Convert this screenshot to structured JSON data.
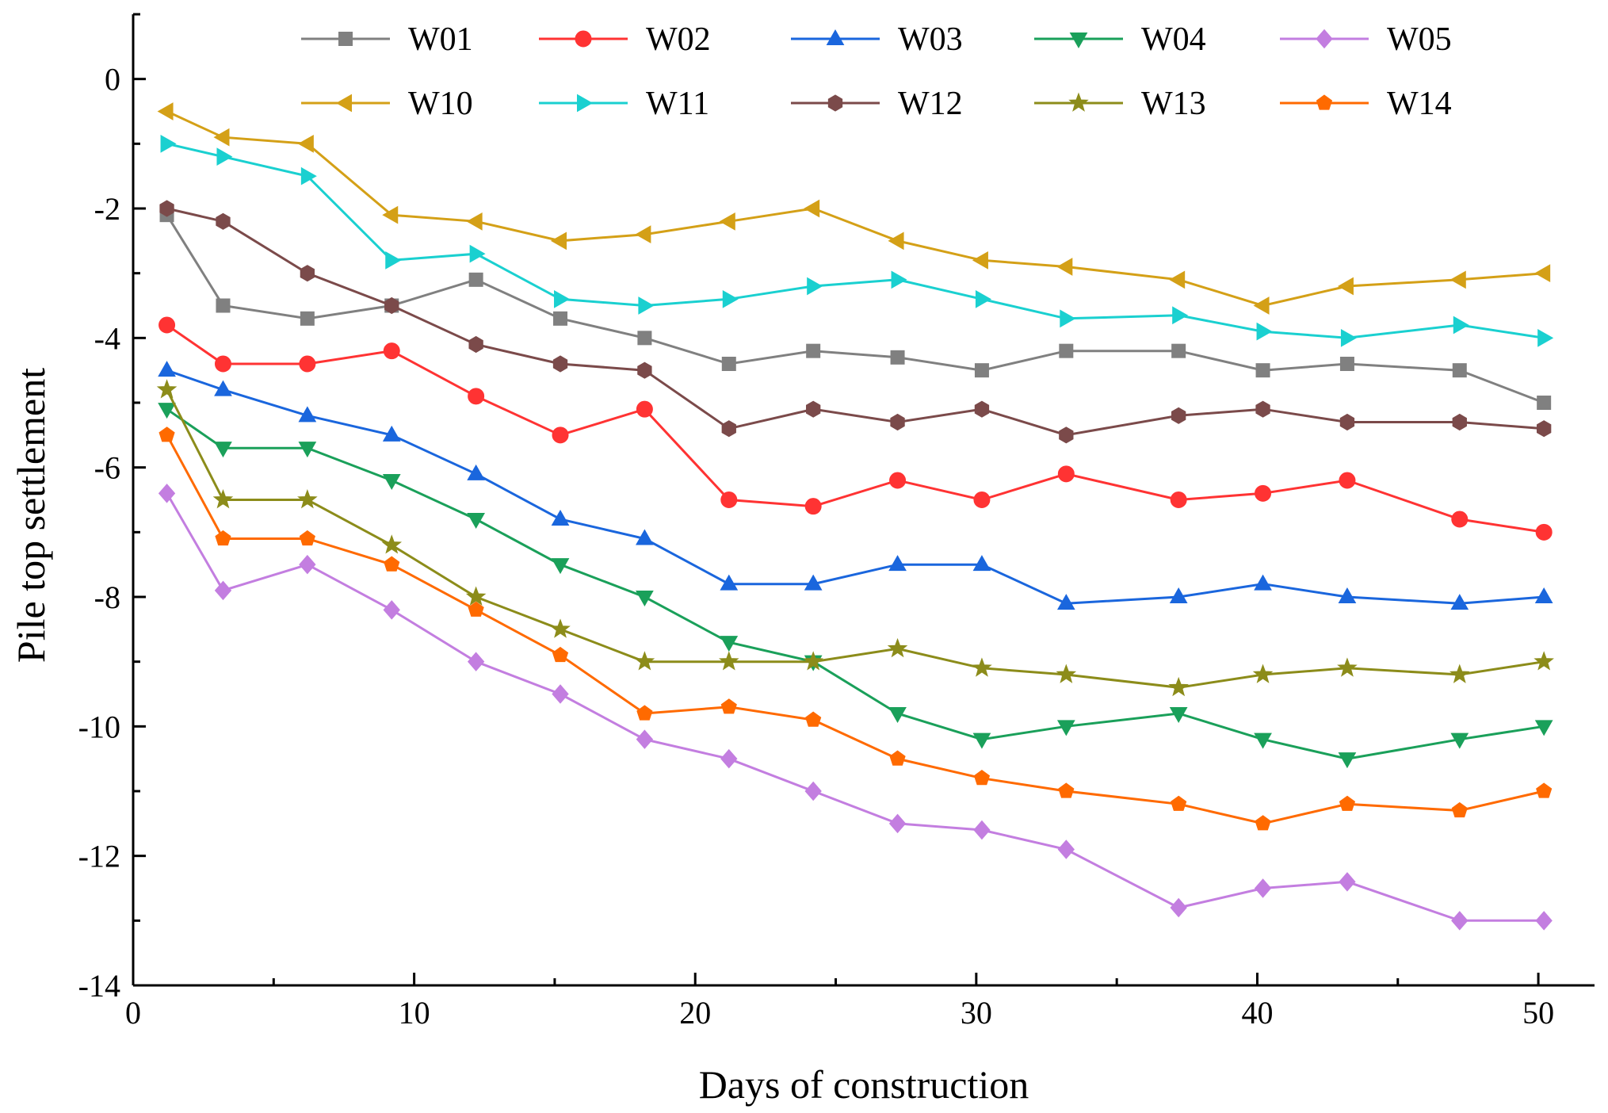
{
  "chart_data": {
    "type": "line",
    "title": "",
    "xlabel": "Days of construction",
    "ylabel": "Pile top settlement",
    "xlim": [
      0,
      52
    ],
    "ylim": [
      -14,
      1
    ],
    "xticks": [
      0,
      10,
      20,
      30,
      40,
      50
    ],
    "yticks": [
      0,
      -2,
      -4,
      -6,
      -8,
      -10,
      -12,
      -14
    ],
    "ytick_labels": [
      "0",
      "-2",
      "-4",
      "-6",
      "-8",
      "-10",
      "-12",
      "-14"
    ],
    "grid": false,
    "legend_position": "top",
    "x": [
      1.2,
      3.2,
      6.2,
      9.2,
      12.2,
      15.2,
      18.2,
      21.2,
      24.2,
      27.2,
      30.2,
      33.2,
      37.2,
      40.2,
      43.2,
      47.2,
      50.2
    ],
    "series": [
      {
        "name": "W01",
        "color": "#808080",
        "marker": "square",
        "values": [
          -2.1,
          -3.5,
          -3.7,
          -3.5,
          -3.1,
          -3.7,
          -4.0,
          -4.4,
          -4.2,
          -4.3,
          -4.5,
          -4.2,
          -4.2,
          -4.5,
          -4.4,
          -4.5,
          -5.0
        ]
      },
      {
        "name": "W02",
        "color": "#ff3333",
        "marker": "circle",
        "values": [
          -3.8,
          -4.4,
          -4.4,
          -4.2,
          -4.9,
          -5.5,
          -5.1,
          -6.5,
          -6.6,
          -6.2,
          -6.5,
          -6.1,
          -6.5,
          -6.4,
          -6.2,
          -6.8,
          -7.0
        ]
      },
      {
        "name": "W03",
        "color": "#1a66dd",
        "marker": "triangle-up",
        "values": [
          -4.5,
          -4.8,
          -5.2,
          -5.5,
          -6.1,
          -6.8,
          -7.1,
          -7.8,
          -7.8,
          -7.5,
          -7.5,
          -8.1,
          -8.0,
          -7.8,
          -8.0,
          -8.1,
          -8.0
        ]
      },
      {
        "name": "W04",
        "color": "#1aa05a",
        "marker": "triangle-down",
        "values": [
          -5.1,
          -5.7,
          -5.7,
          -6.2,
          -6.8,
          -7.5,
          -8.0,
          -8.7,
          -9.0,
          -9.8,
          -10.2,
          -10.0,
          -9.8,
          -10.2,
          -10.5,
          -10.2,
          -10.0
        ]
      },
      {
        "name": "W05",
        "color": "#c37ee0",
        "marker": "diamond",
        "values": [
          -6.4,
          -7.9,
          -7.5,
          -8.2,
          -9.0,
          -9.5,
          -10.2,
          -10.5,
          -11.0,
          -11.5,
          -11.6,
          -11.9,
          -12.8,
          -12.5,
          -12.4,
          -13.0,
          -13.0
        ]
      },
      {
        "name": "W10",
        "color": "#d4a017",
        "marker": "triangle-left",
        "values": [
          -0.5,
          -0.9,
          -1.0,
          -2.1,
          -2.2,
          -2.5,
          -2.4,
          -2.2,
          -2.0,
          -2.5,
          -2.8,
          -2.9,
          -3.1,
          -3.5,
          -3.2,
          -3.1,
          -3.0
        ]
      },
      {
        "name": "W11",
        "color": "#1ad0d0",
        "marker": "triangle-right",
        "values": [
          -1.0,
          -1.2,
          -1.5,
          -2.8,
          -2.7,
          -3.4,
          -3.5,
          -3.4,
          -3.2,
          -3.1,
          -3.4,
          -3.7,
          -3.65,
          -3.9,
          -4.0,
          -3.8,
          -4.0
        ]
      },
      {
        "name": "W12",
        "color": "#7b4a4a",
        "marker": "hexagon",
        "values": [
          -2.0,
          -2.2,
          -3.0,
          -3.5,
          -4.1,
          -4.4,
          -4.5,
          -5.4,
          -5.1,
          -5.3,
          -5.1,
          -5.5,
          -5.2,
          -5.1,
          -5.3,
          -5.3,
          -5.4
        ]
      },
      {
        "name": "W13",
        "color": "#8c8c1a",
        "marker": "star",
        "values": [
          -4.8,
          -6.5,
          -6.5,
          -7.2,
          -8.0,
          -8.5,
          -9.0,
          -9.0,
          -9.0,
          -8.8,
          -9.1,
          -9.2,
          -9.4,
          -9.2,
          -9.1,
          -9.2,
          -9.0
        ]
      },
      {
        "name": "W14",
        "color": "#ff6a00",
        "marker": "pentagon",
        "values": [
          -5.5,
          -7.1,
          -7.1,
          -7.5,
          -8.2,
          -8.9,
          -9.8,
          -9.7,
          -9.9,
          -10.5,
          -10.8,
          -11.0,
          -11.2,
          -11.5,
          -11.2,
          -11.3,
          -11.0
        ]
      }
    ]
  }
}
